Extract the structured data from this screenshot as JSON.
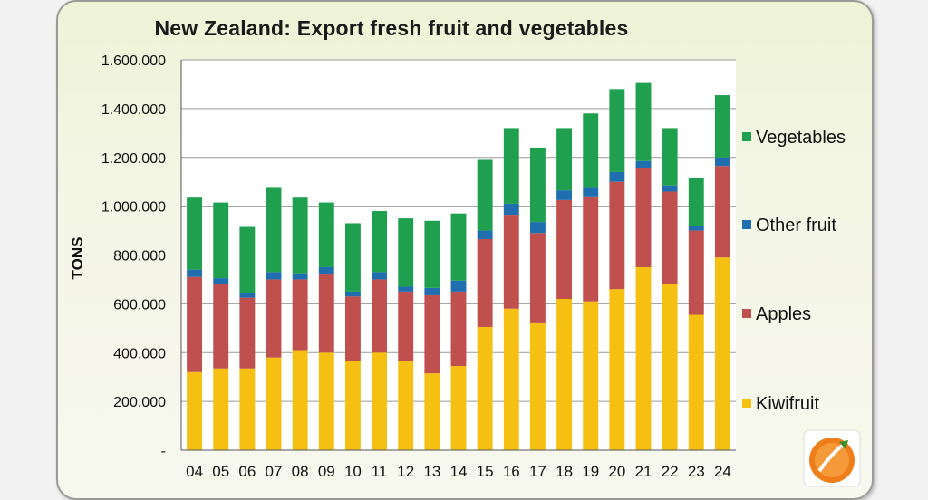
{
  "chart_data": {
    "type": "bar",
    "stacked": true,
    "title": "New Zealand: Export fresh fruit and vegetables",
    "ylabel": "TONS",
    "xlabel": "",
    "ylim": [
      0,
      1600000
    ],
    "yticks": [
      0,
      200000,
      400000,
      600000,
      800000,
      1000000,
      1200000,
      1400000,
      1600000
    ],
    "ytick_labels": [
      "-",
      "200.000",
      "400.000",
      "600.000",
      "800.000",
      "1.000.000",
      "1.200.000",
      "1.400.000",
      "1.600.000"
    ],
    "grid": true,
    "legend_position": "right",
    "categories": [
      "04",
      "05",
      "06",
      "07",
      "08",
      "09",
      "10",
      "11",
      "12",
      "13",
      "14",
      "15",
      "16",
      "17",
      "18",
      "19",
      "20",
      "21",
      "22",
      "23",
      "24"
    ],
    "series": [
      {
        "name": "Kiwifruit",
        "color": "#f5c012",
        "values": [
          320000,
          335000,
          335000,
          380000,
          410000,
          400000,
          365000,
          400000,
          365000,
          315000,
          345000,
          505000,
          580000,
          520000,
          620000,
          610000,
          660000,
          750000,
          680000,
          555000,
          790000
        ]
      },
      {
        "name": "Apples",
        "color": "#c0504d",
        "values": [
          390000,
          345000,
          290000,
          320000,
          290000,
          320000,
          265000,
          300000,
          285000,
          320000,
          305000,
          360000,
          385000,
          370000,
          405000,
          430000,
          440000,
          405000,
          380000,
          345000,
          375000
        ]
      },
      {
        "name": "Other fruit",
        "color": "#1f6fb0",
        "values": [
          30000,
          25000,
          20000,
          30000,
          25000,
          30000,
          20000,
          30000,
          20000,
          30000,
          45000,
          35000,
          45000,
          45000,
          40000,
          35000,
          40000,
          30000,
          25000,
          20000,
          35000
        ]
      },
      {
        "name": "Vegetables",
        "color": "#1fa04f",
        "values": [
          295000,
          310000,
          270000,
          345000,
          310000,
          265000,
          280000,
          250000,
          280000,
          275000,
          275000,
          290000,
          310000,
          305000,
          255000,
          305000,
          340000,
          320000,
          235000,
          195000,
          255000
        ]
      }
    ]
  },
  "logo": {
    "name": "orange-logo"
  }
}
